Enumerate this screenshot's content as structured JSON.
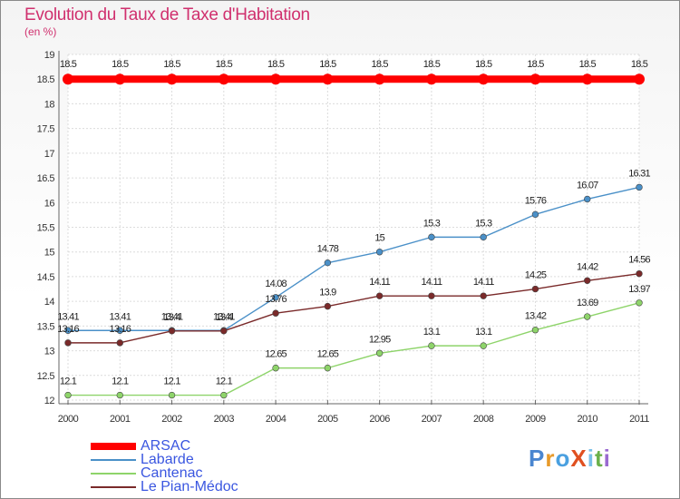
{
  "chart_data": {
    "type": "line",
    "title": "Evolution du Taux de Taxe d'Habitation",
    "subtitle": "(en %)",
    "x": [
      "2000",
      "2001",
      "2002",
      "2003",
      "2004",
      "2005",
      "2006",
      "2007",
      "2008",
      "2009",
      "2010",
      "2011"
    ],
    "ylim": [
      12,
      19
    ],
    "yticks": [
      "12",
      "12.5",
      "13",
      "13.5",
      "14",
      "14.5",
      "15",
      "15.5",
      "16",
      "16.5",
      "17",
      "17.5",
      "18",
      "18.5",
      "19"
    ],
    "grid": true,
    "legend_position": "bottom-left",
    "series": [
      {
        "name": "ARSAC",
        "color": "#ff0000",
        "values": [
          18.5,
          18.5,
          18.5,
          18.5,
          18.5,
          18.5,
          18.5,
          18.5,
          18.5,
          18.5,
          18.5,
          18.5
        ],
        "labels": [
          "18.5",
          "18.5",
          "18.5",
          "18.5",
          "18.5",
          "18.5",
          "18.5",
          "18.5",
          "18.5",
          "18.5",
          "18.5",
          "18.5"
        ]
      },
      {
        "name": "Labarde",
        "color": "#4a90c8",
        "values": [
          13.41,
          13.41,
          13.41,
          13.41,
          14.08,
          14.78,
          15,
          15.3,
          15.3,
          15.76,
          16.07,
          16.31
        ],
        "labels": [
          "13.41",
          "13.41",
          "13.41",
          "13.41",
          "14.08",
          "14.78",
          "15",
          "15.3",
          "15.3",
          "15.76",
          "16.07",
          "16.31"
        ]
      },
      {
        "name": "Cantenac",
        "color": "#8ed46a",
        "values": [
          12.1,
          12.1,
          12.1,
          12.1,
          12.65,
          12.65,
          12.95,
          13.1,
          13.1,
          13.42,
          13.69,
          13.97
        ],
        "labels": [
          "12.1",
          "12.1",
          "12.1",
          "12.1",
          "12.65",
          "12.65",
          "12.95",
          "13.1",
          "13.1",
          "13.42",
          "13.69",
          "13.97"
        ]
      },
      {
        "name": "Le Pian-Médoc",
        "color": "#7a2a2a",
        "values": [
          13.16,
          13.16,
          13.4,
          13.4,
          13.76,
          13.9,
          14.11,
          14.11,
          14.11,
          14.25,
          14.42,
          14.56
        ],
        "labels": [
          "13.16",
          "13.16",
          "13.4",
          "13.4",
          "13.76",
          "13.9",
          "14.11",
          "14.11",
          "14.11",
          "14.25",
          "14.42",
          "14.56"
        ]
      }
    ]
  },
  "logo": {
    "text": "ProXiti",
    "colors": [
      "#4a86d0",
      "#e89a2a",
      "#4aa0e0",
      "#e05020",
      "#7ac0e8",
      "#6ab04a",
      "#9a6ad0"
    ]
  }
}
